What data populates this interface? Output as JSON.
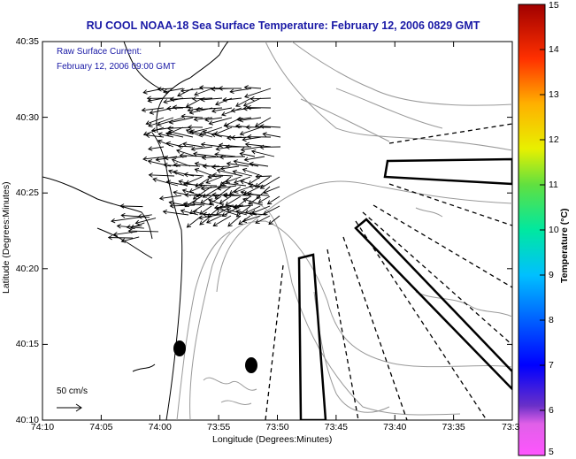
{
  "title": "RU COOL  NOAA-18  Sea Surface Temperature:  February 12, 2006 0829 GMT",
  "legend": {
    "line1": "Raw Surface Current:",
    "line2": "February 12, 2006 09:00 GMT",
    "scale_label": "50 cm/s"
  },
  "axes": {
    "xlabel": "Longitude (Degrees:Minutes)",
    "ylabel": "Latitude (Degrees:Minutes)",
    "x_ticks": [
      "74:10",
      "74:05",
      "74:00",
      "73:55",
      "73:50",
      "73:45",
      "73:40",
      "73:35",
      "73:3"
    ],
    "y_ticks": [
      "40:35",
      "40:30",
      "40:25",
      "40:20",
      "40:15",
      "40:10"
    ]
  },
  "colorbar": {
    "title": "Temperature (°C)",
    "ticks": [
      "15",
      "14",
      "13",
      "12",
      "11",
      "10",
      "9",
      "8",
      "7",
      "6",
      "5"
    ],
    "range": [
      5,
      15
    ]
  },
  "colors": {
    "title": "#1a1aa6",
    "vectors": "#000000",
    "coastline": "#000000",
    "bathymetry": "#999999"
  }
}
